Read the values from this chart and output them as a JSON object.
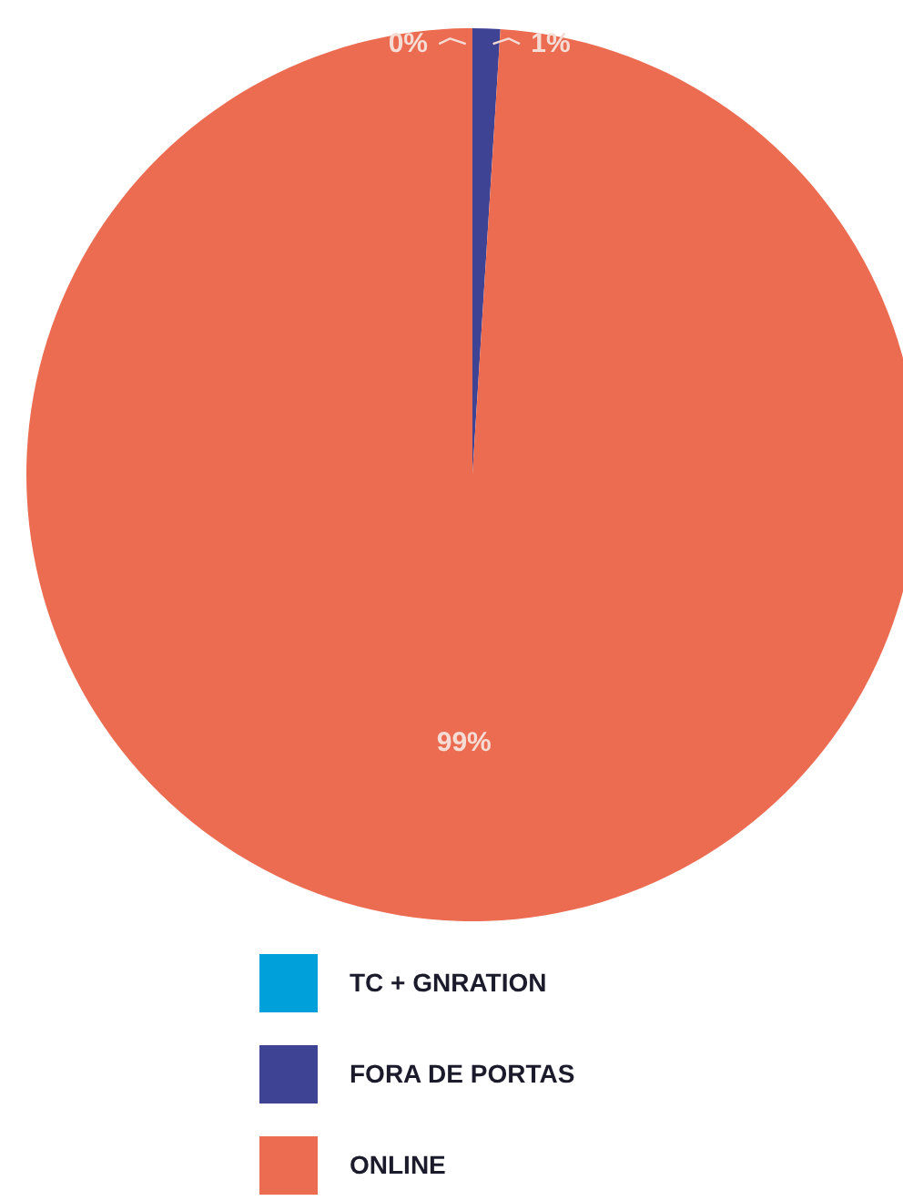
{
  "chart_data": {
    "type": "pie",
    "categories": [
      "TC + GNRATION",
      "FORA DE PORTAS",
      "ONLINE"
    ],
    "values": [
      0,
      1,
      99
    ],
    "colors": [
      "#00a0da",
      "#3f4393",
      "#ec6c52"
    ],
    "value_labels": [
      "0%",
      "1%",
      "99%"
    ],
    "legend": "bottom"
  }
}
